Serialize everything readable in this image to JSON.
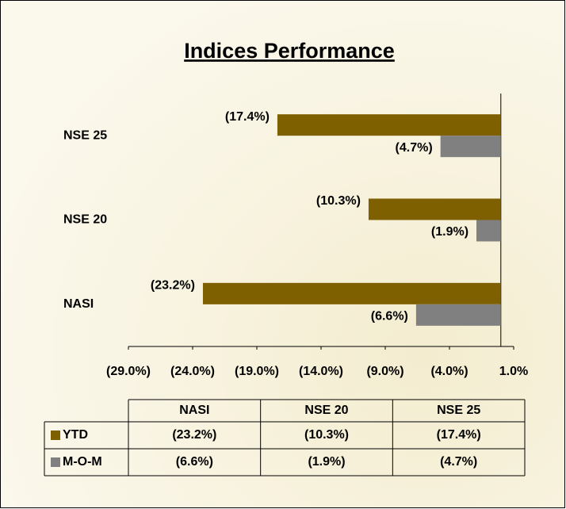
{
  "chart_data": {
    "type": "bar",
    "orientation": "horizontal",
    "title": "Indices Performance",
    "categories": [
      "NASI",
      "NSE 20",
      "NSE 25"
    ],
    "series": [
      {
        "name": "YTD",
        "color": "#7f6000",
        "values": [
          -23.2,
          -10.3,
          -17.4
        ],
        "value_labels": [
          "(23.2%)",
          "(10.3%)",
          "(17.4%)"
        ]
      },
      {
        "name": "M-O-M",
        "color": "#808080",
        "values": [
          -6.6,
          -1.9,
          -4.7
        ],
        "value_labels": [
          "(6.6%)",
          "(1.9%)",
          "(4.7%)"
        ]
      }
    ],
    "xlim": [
      -29,
      1
    ],
    "xticks": [
      {
        "value": -29,
        "label": "(29.0%)"
      },
      {
        "value": -24,
        "label": "(24.0%)"
      },
      {
        "value": -19,
        "label": "(19.0%)"
      },
      {
        "value": -14,
        "label": "(14.0%)"
      },
      {
        "value": -9,
        "label": "(9.0%)"
      },
      {
        "value": -4,
        "label": "(4.0%)"
      },
      {
        "value": 1,
        "label": "1.0%"
      }
    ],
    "data_table": true
  }
}
